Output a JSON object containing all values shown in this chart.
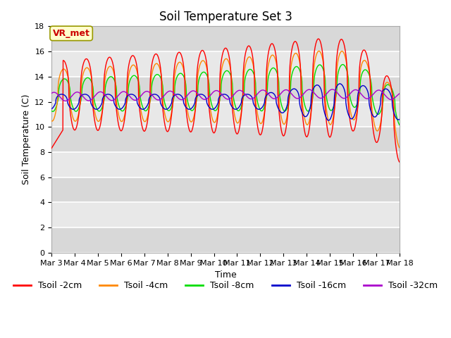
{
  "title": "Soil Temperature Set 3",
  "xlabel": "Time",
  "ylabel": "Soil Temperature (C)",
  "ylim": [
    0,
    18
  ],
  "yticks": [
    0,
    2,
    4,
    6,
    8,
    10,
    12,
    14,
    16,
    18
  ],
  "series_colors": [
    "#ff0000",
    "#ff8800",
    "#00dd00",
    "#0000cc",
    "#aa00cc"
  ],
  "series_labels": [
    "Tsoil -2cm",
    "Tsoil -4cm",
    "Tsoil -8cm",
    "Tsoil -16cm",
    "Tsoil -32cm"
  ],
  "annotation_text": "VR_met",
  "annotation_color": "#cc0000",
  "background_color": "#ffffff",
  "plot_bg_color_light": "#e8e8e8",
  "plot_bg_color_dark": "#d0d0d0",
  "grid_color": "#ffffff",
  "title_fontsize": 12,
  "label_fontsize": 9,
  "tick_fontsize": 8,
  "legend_fontsize": 9,
  "annotation_fontsize": 9
}
